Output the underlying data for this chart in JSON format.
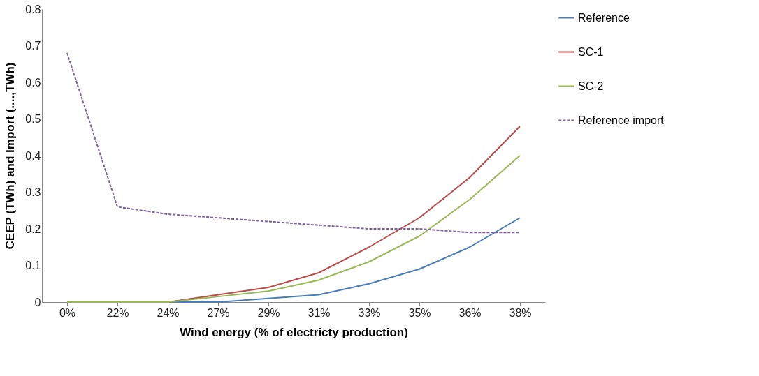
{
  "chart_data": {
    "type": "line",
    "xlabel": "Wind energy (% of electricty production)",
    "ylabel": "CEEP (TWh) and Import (....,TWh)",
    "categories": [
      "0%",
      "22%",
      "24%",
      "27%",
      "29%",
      "31%",
      "33%",
      "35%",
      "36%",
      "38%"
    ],
    "series": [
      {
        "name": "Reference",
        "color": "#4a7ebb",
        "line_style": "solid",
        "values": [
          0,
          0,
          0,
          0,
          0.01,
          0.02,
          0.05,
          0.09,
          0.15,
          0.23
        ]
      },
      {
        "name": "SC-1",
        "color": "#be4b48",
        "line_style": "solid",
        "values": [
          0,
          0,
          0,
          0.02,
          0.04,
          0.08,
          0.15,
          0.23,
          0.34,
          0.48
        ]
      },
      {
        "name": "SC-2",
        "color": "#98b954",
        "line_style": "solid",
        "values": [
          0,
          0,
          0,
          0.015,
          0.03,
          0.06,
          0.11,
          0.18,
          0.28,
          0.4
        ]
      },
      {
        "name": "Reference import",
        "color": "#7d60a0",
        "line_style": "dashed",
        "values": [
          0.68,
          0.26,
          0.24,
          0.23,
          0.22,
          0.21,
          0.2,
          0.2,
          0.19,
          0.19
        ]
      }
    ],
    "ylim": [
      0,
      0.8
    ],
    "yticks": [
      0,
      0.1,
      0.2,
      0.3,
      0.4,
      0.5,
      0.6,
      0.7,
      0.8
    ],
    "grid": false,
    "legend": "right"
  }
}
